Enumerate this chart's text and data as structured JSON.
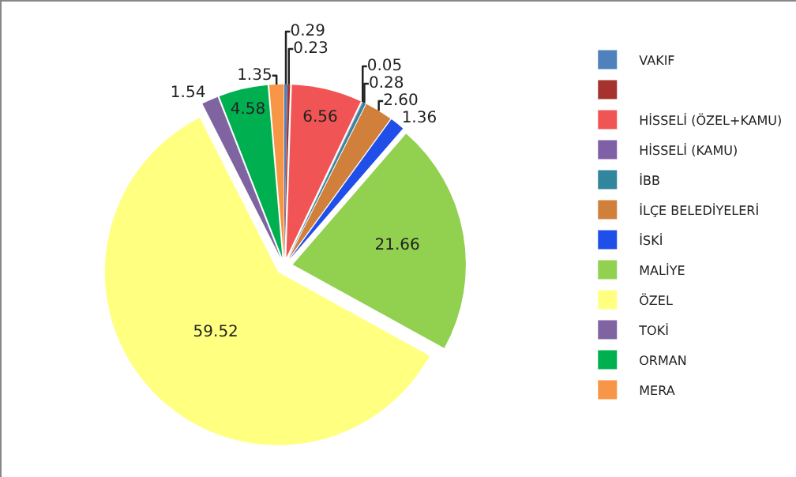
{
  "chart_data": {
    "type": "pie",
    "categories": [
      "VAKIF",
      null,
      "HİSSELİ (ÖZEL+KAMU)",
      "HİSSELİ (KAMU)",
      "İBB",
      "İLÇE BELEDİYELERİ",
      "İSKİ",
      "MALİYE",
      "ÖZEL",
      "TOKİ",
      "ORMAN",
      "MERA"
    ],
    "values": [
      0.29,
      0.23,
      6.56,
      0.05,
      0.28,
      2.6,
      1.36,
      21.66,
      59.52,
      1.54,
      4.58,
      1.35
    ],
    "value_labels": [
      "0.29",
      "0.23",
      "6.56",
      "0.05",
      "0.28",
      "2.60",
      "1.36",
      "21.66",
      "59.52",
      "1.54",
      "4.58",
      "1.35"
    ],
    "colors": [
      "#4f81bd",
      "#a5322f",
      "#f05454",
      "#7f5fa6",
      "#31859c",
      "#d0803a",
      "#1f4fe8",
      "#92d050",
      "#ffff80",
      "#8064a2",
      "#00b050",
      "#f79646"
    ],
    "legend": "right"
  }
}
